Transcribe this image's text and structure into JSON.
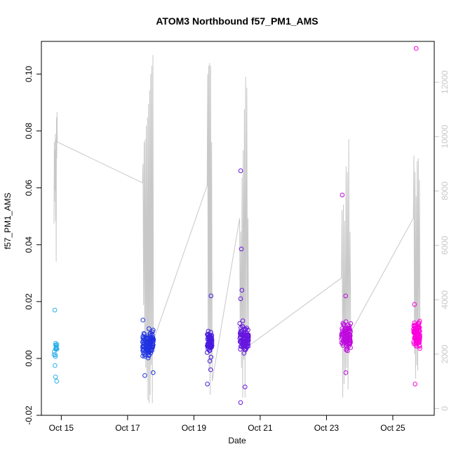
{
  "chart_data": {
    "type": "scatter",
    "title": "ATOM3 Northbound f57_PM1_AMS",
    "xlabel": "Date",
    "ylabel": "f57_PM1_AMS",
    "x_ticks": [
      "Oct 15",
      "Oct 17",
      "Oct 19",
      "Oct 21",
      "Oct 23",
      "Oct 25"
    ],
    "x_tick_days": [
      15,
      17,
      19,
      21,
      23,
      25
    ],
    "xlim_days": [
      14.4,
      26.25
    ],
    "ylim": [
      -0.02,
      0.1115
    ],
    "y_ticks": [
      -0.02,
      0.0,
      0.02,
      0.04,
      0.06,
      0.08,
      0.1
    ],
    "y_tick_labels": [
      "-0.02",
      "0.00",
      "0.02",
      "0.04",
      "0.06",
      "0.08",
      "0.10"
    ],
    "y2lim": [
      -250,
      13500
    ],
    "y2_ticks": [
      0,
      2000,
      4000,
      6000,
      8000,
      10000,
      12000
    ],
    "grid": false,
    "colors": {
      "line": "#c8c8c8",
      "point_start": "#2cb5ea",
      "point_mid": "#2020e0",
      "point_end": "#ff00dd"
    },
    "segments": [
      {
        "day_start": 14.78,
        "day_end": 14.88,
        "n": 15,
        "center": 0.003,
        "spread": 0.004,
        "extra": [
          0.017,
          -0.0065,
          -0.008,
          -0.0025
        ],
        "altitude": [
          6800,
          9800,
          7600,
          9500,
          8000,
          10100,
          6900,
          9900,
          5400,
          10700,
          9200,
          10900,
          9800
        ]
      },
      {
        "day_start": 17.45,
        "day_end": 17.78,
        "n": 120,
        "center": 0.005,
        "spread": 0.0035,
        "extra": [
          0.0135,
          -0.006,
          -0.005
        ],
        "altitude": [
          8300,
          9000,
          3800,
          9800,
          2700,
          9900,
          1500,
          10400,
          1200,
          10700,
          300,
          11200,
          200,
          11700,
          500,
          12300,
          1600,
          12600,
          200,
          13000,
          2500
        ]
      },
      {
        "day_start": 19.4,
        "day_end": 19.55,
        "n": 60,
        "center": 0.006,
        "spread": 0.004,
        "extra": [
          0.022,
          -0.009,
          -0.004
        ],
        "altitude": [
          8200,
          12300,
          2200,
          12600,
          1400,
          12700,
          500,
          12600,
          1700,
          9800,
          1000
        ]
      },
      {
        "day_start": 20.38,
        "day_end": 20.65,
        "n": 90,
        "center": 0.007,
        "spread": 0.004,
        "extra": [
          0.066,
          0.0385,
          -0.0155,
          0.024,
          -0.01,
          0.021
        ],
        "altitude": [
          7000,
          2500,
          6500,
          1500,
          8500,
          400,
          9500,
          1800,
          11000,
          400,
          12200,
          2000,
          11800,
          3000,
          7000,
          2300
        ]
      },
      {
        "day_start": 23.45,
        "day_end": 23.73,
        "n": 90,
        "center": 0.0075,
        "spread": 0.004,
        "extra": [
          0.0575,
          0.022,
          -0.005
        ],
        "altitude": [
          4800,
          7300,
          400,
          7500,
          900,
          6900,
          1200,
          8900,
          1500,
          8700,
          700,
          9900,
          2000,
          6500,
          2800
        ]
      },
      {
        "day_start": 25.62,
        "day_end": 25.82,
        "n": 80,
        "center": 0.0085,
        "spread": 0.004,
        "extra": [
          0.109,
          -0.009,
          0.019
        ],
        "altitude": [
          7000,
          9300,
          2000,
          8700,
          1100,
          7800,
          1600,
          9100,
          1400,
          9200,
          2400,
          8400,
          2900
        ]
      }
    ]
  }
}
